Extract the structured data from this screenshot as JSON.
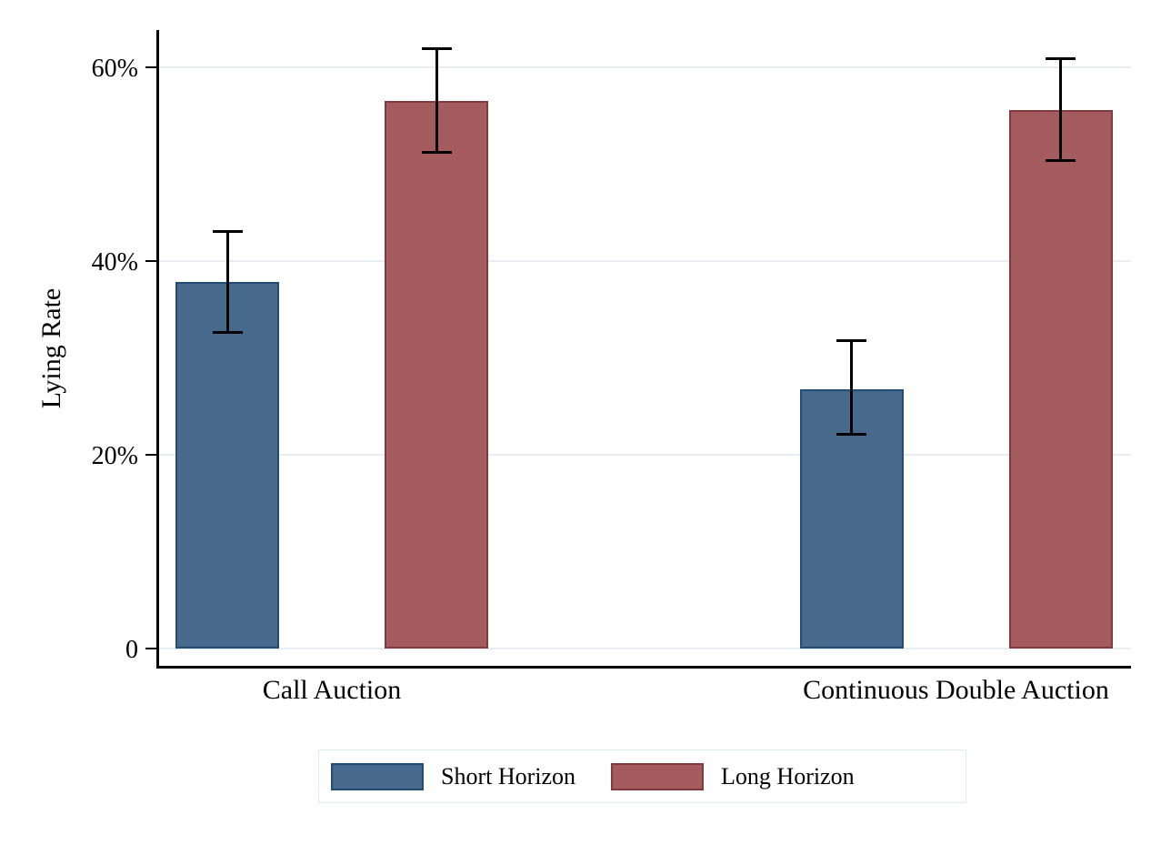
{
  "figure": {
    "background_color": "#ffffff",
    "gridline_color": "#e7eef1",
    "axis_color": "#000000"
  },
  "chart_data": {
    "type": "bar",
    "title": "",
    "xlabel": "",
    "ylabel": "Lying Rate",
    "categories": [
      "Call Auction",
      "Continuous Double Auction"
    ],
    "series": [
      {
        "name": "Short Horizon",
        "fill": "#47698c",
        "border": "#204d73",
        "values": [
          37.8,
          26.8
        ],
        "ci_low": [
          32.5,
          22.0
        ],
        "ci_high": [
          43.2,
          31.9
        ]
      },
      {
        "name": "Long Horizon",
        "fill": "#a45c5f",
        "border": "#833a3e",
        "values": [
          56.5,
          55.6
        ],
        "ci_low": [
          51.1,
          50.2
        ],
        "ci_high": [
          62.1,
          61.0
        ]
      }
    ],
    "y_ticks": [
      {
        "value": 0,
        "label": "0"
      },
      {
        "value": 20,
        "label": "20%"
      },
      {
        "value": 40,
        "label": "40%"
      },
      {
        "value": 60,
        "label": "60%"
      }
    ],
    "ylim": [
      0,
      63
    ],
    "grid": true,
    "error_bars": true,
    "legend_position": "bottom"
  }
}
